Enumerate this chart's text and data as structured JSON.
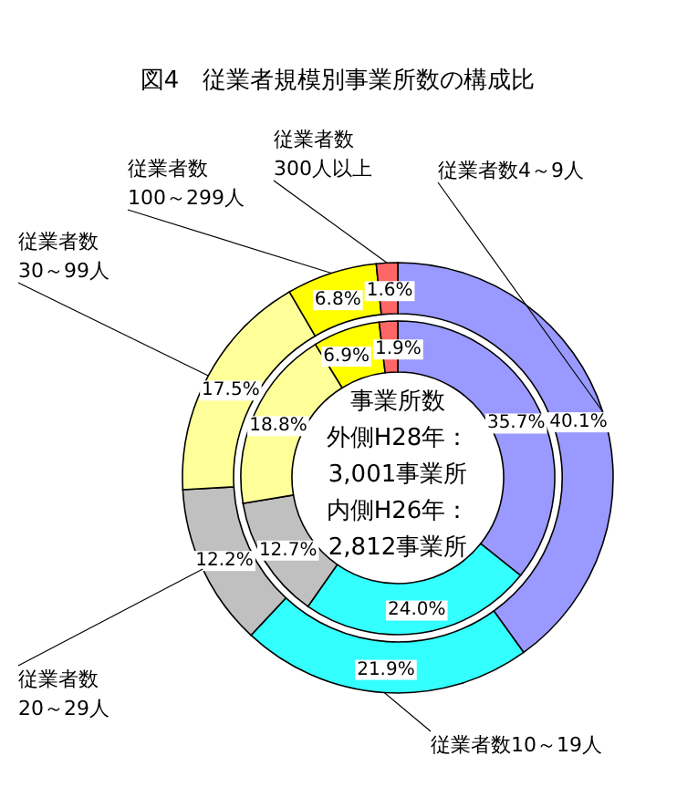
{
  "chart_data": {
    "type": "donut",
    "title": "図4　従業者規模別事業所数の構成比",
    "categories": [
      "従業者数4～9人",
      "従業者数10～19人",
      "従業者数\n20～29人",
      "従業者数\n30～99人",
      "従業者数\n100～299人",
      "従業者数\n300人以上"
    ],
    "colors": [
      "#9999ff",
      "#33ffff",
      "#c0c0c0",
      "#ffff99",
      "#ffff00",
      "#ff6666"
    ],
    "series": [
      {
        "values": [
          40.1,
          21.9,
          12.2,
          17.5,
          6.8,
          1.6
        ],
        "value_labels": [
          "40.1%",
          "21.9%",
          "12.2%",
          "17.5%",
          "6.8%",
          "1.6%"
        ]
      },
      {
        "values": [
          35.7,
          24.0,
          12.7,
          18.8,
          6.9,
          1.9
        ],
        "value_labels": [
          "35.7%",
          "24.0%",
          "12.7%",
          "18.8%",
          "6.9%",
          "1.9%"
        ]
      }
    ],
    "annotations": [
      "事業所数",
      "外側H28年：",
      "3,001事業所",
      "内側H26年：",
      "2,812事業所"
    ]
  }
}
